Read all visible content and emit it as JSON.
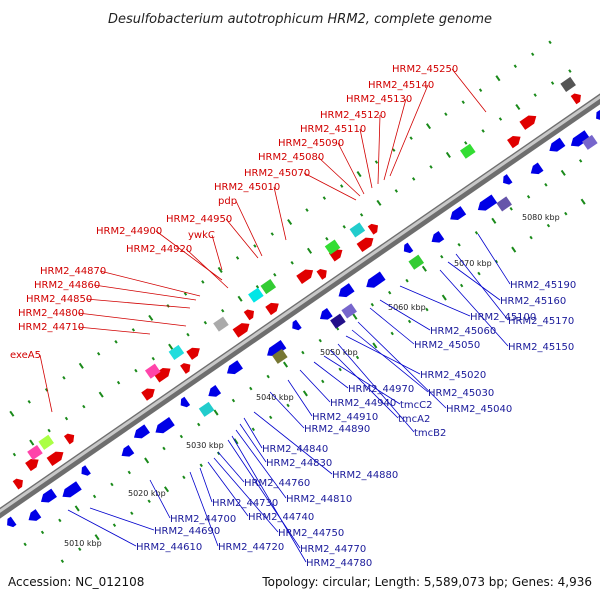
{
  "title": "Desulfobacterium autotrophicum HRM2, complete genome",
  "footer": {
    "accession": "Accession: NC_012108",
    "summary": "Topology: circular; Length: 5,589,073 bp; Genes: 4,936"
  },
  "colors": {
    "backbone": "#8a8a8a",
    "forward_gene": "#e00000",
    "reverse_gene": "#0000e6",
    "forward_label": "#d10000",
    "reverse_label": "#1a1a9a",
    "tick_major": "#1a8a1a"
  },
  "scale_ticks": [
    "5010 kbp",
    "5020 kbp",
    "5030 kbp",
    "5040 kbp",
    "5050 kbp",
    "5060 kbp",
    "5070 kbp",
    "5080 kbp"
  ],
  "forward_labels": [
    "exeA5",
    "HRM2_44710",
    "HRM2_44800",
    "HRM2_44850",
    "HRM2_44860",
    "HRM2_44870",
    "HRM2_44920",
    "HRM2_44900",
    "ywkC",
    "HRM2_44950",
    "pdp",
    "HRM2_45010",
    "HRM2_45070",
    "HRM2_45080",
    "HRM2_45090",
    "HRM2_45110",
    "HRM2_45120",
    "HRM2_45130",
    "HRM2_45140",
    "HRM2_45250"
  ],
  "reverse_labels": [
    "HRM2_44610",
    "HRM2_44690",
    "HRM2_44700",
    "HRM2_44720",
    "HRM2_44730",
    "HRM2_44740",
    "HRM2_44750",
    "HRM2_44760",
    "HRM2_44770",
    "HRM2_44780",
    "HRM2_44810",
    "HRM2_44830",
    "HRM2_44840",
    "HRM2_44880",
    "HRM2_44890",
    "HRM2_44910",
    "HRM2_44940",
    "HRM2_44970",
    "tmcC2",
    "tmcA2",
    "tmcB2",
    "HRM2_45020",
    "HRM2_45030",
    "HRM2_45040",
    "HRM2_45050",
    "HRM2_45060",
    "HRM2_45100",
    "HRM2_45150",
    "HRM2_45160",
    "HRM2_45170",
    "HRM2_45190"
  ]
}
